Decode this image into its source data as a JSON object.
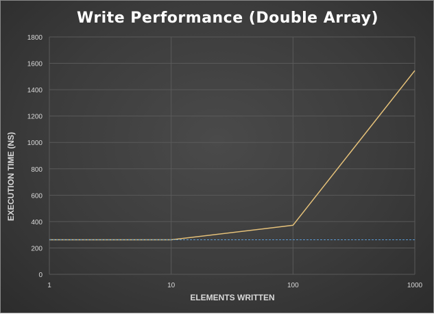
{
  "chart_data": {
    "type": "line",
    "title": "Write Performance (Double Array)",
    "xlabel": "ELEMENTS WRITTEN",
    "ylabel": "EXECUTION TIME (NS)",
    "x_scale": "log",
    "x": [
      1,
      10,
      100,
      1000
    ],
    "x_ticks": [
      "1",
      "10",
      "100",
      "1000"
    ],
    "ylim": [
      0,
      1800
    ],
    "y_ticks": [
      "0",
      "200",
      "400",
      "600",
      "800",
      "1000",
      "1200",
      "1400",
      "1600",
      "1800"
    ],
    "grid": true,
    "legend": "none",
    "series": [
      {
        "values": [
          262,
          262,
          372,
          1545
        ],
        "color": "#e6c27a",
        "style": "solid"
      },
      {
        "values": [
          262,
          262,
          262,
          262
        ],
        "color": "#5b9bd5",
        "style": "dashed"
      }
    ]
  },
  "colors": {
    "background": "#3c3c3c",
    "grid": "#5a5a5a",
    "text": "#d9d9d9",
    "title": "#ffffff"
  }
}
